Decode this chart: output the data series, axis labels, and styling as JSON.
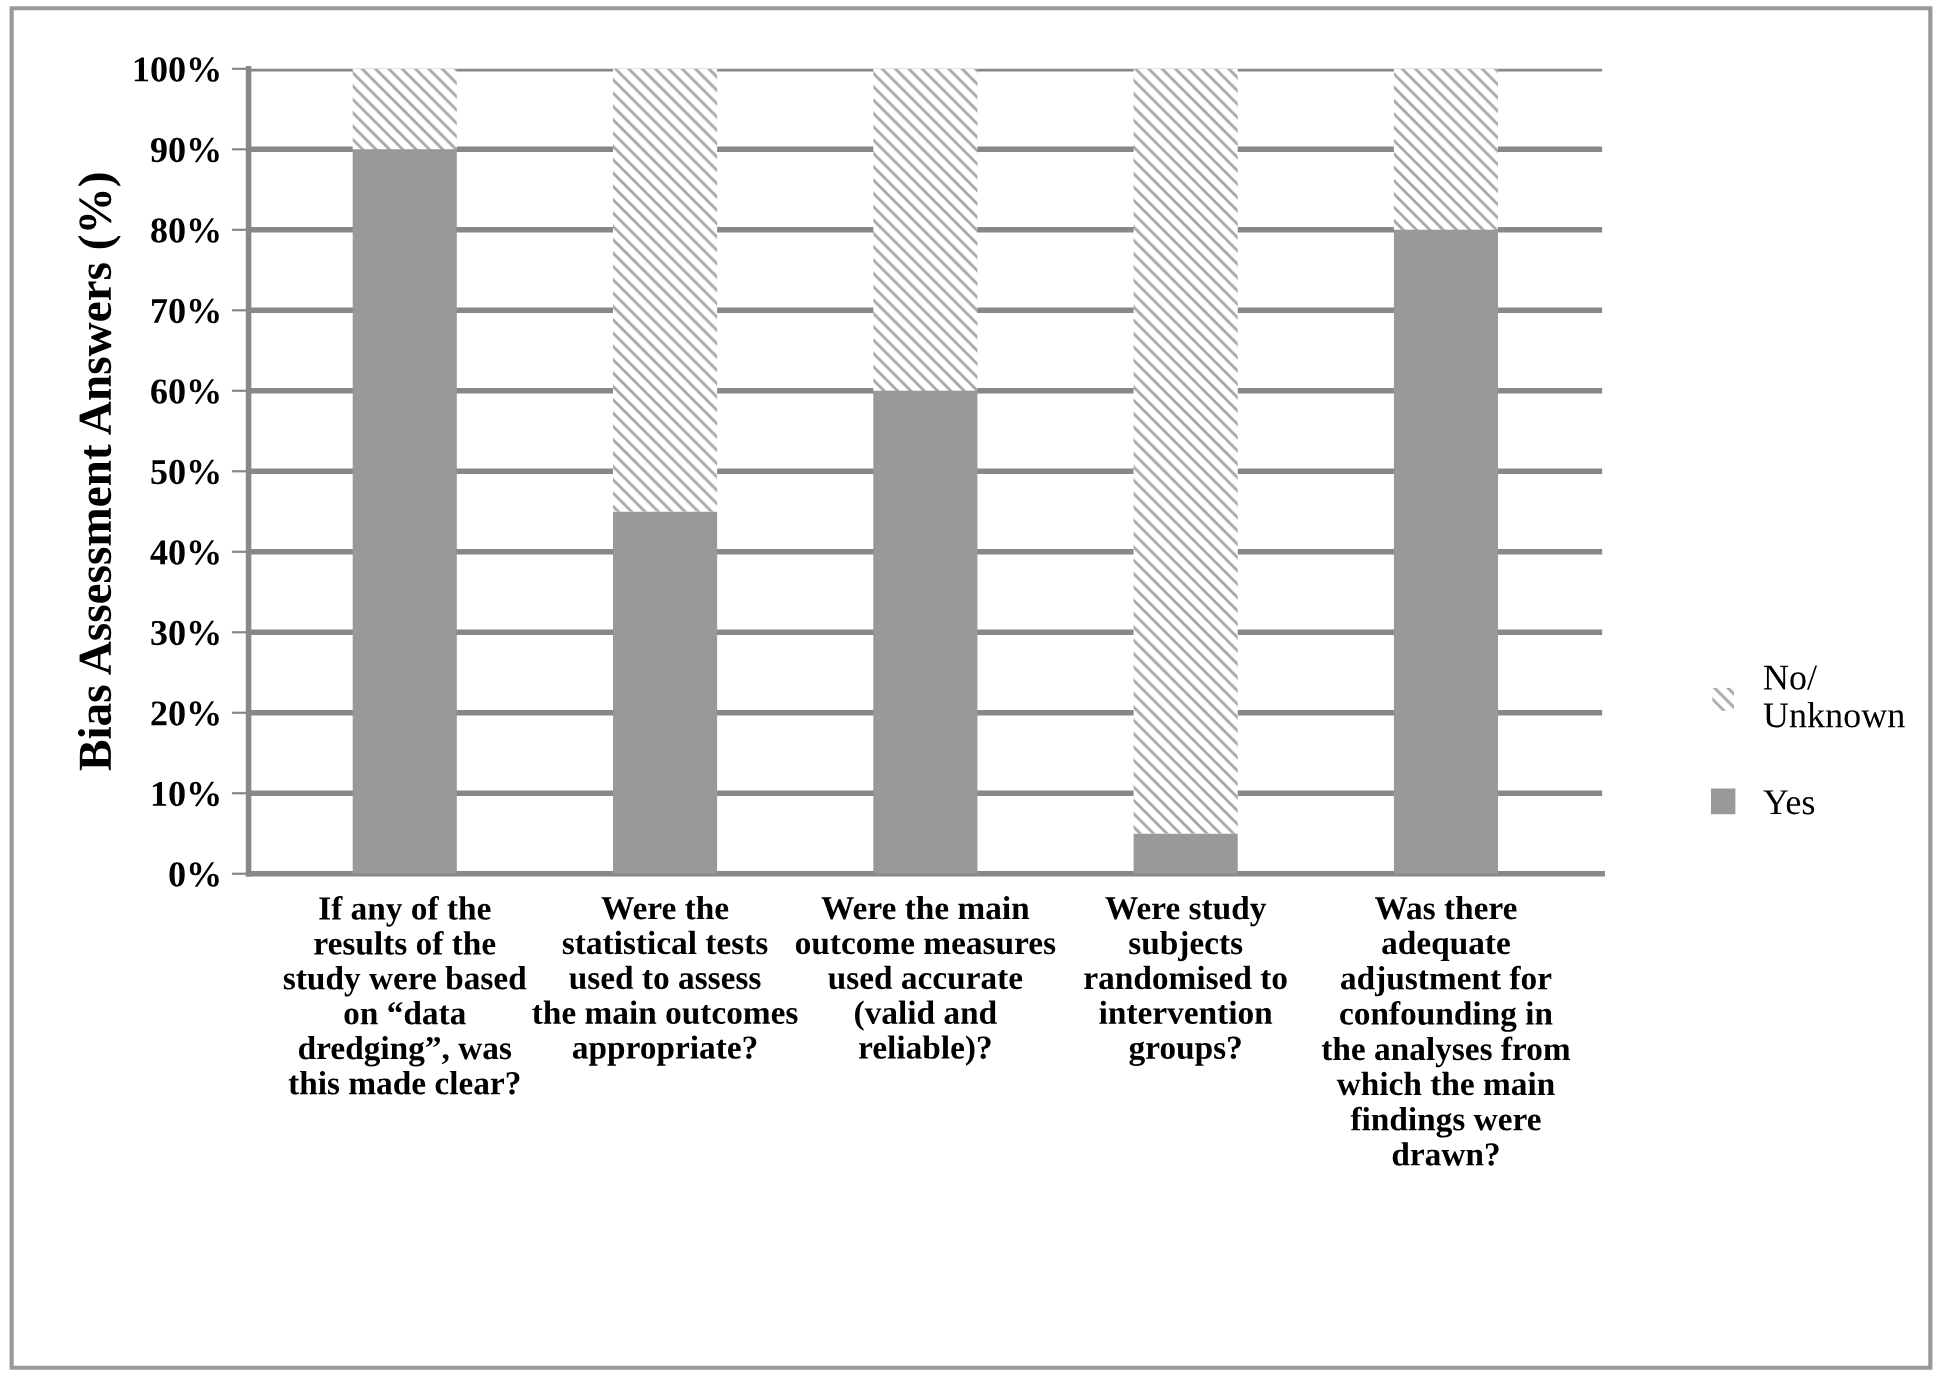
{
  "chart_data": {
    "type": "bar",
    "stacked": true,
    "ylabel": "Bias Assessment Answers (%)",
    "categories": [
      "If any of the results of the study were based on “data dredging”, was this made clear?",
      "Were the statistical tests used to assess the main outcomes appropriate?",
      "Were the main outcome measures used accurate (valid and reliable)?",
      "Were study subjects randomised to intervention groups?",
      "Was there adequate adjustment for confounding in the analyses from which the main findings were drawn?"
    ],
    "series": [
      {
        "name": "Yes",
        "color": "#999999",
        "values": [
          90,
          45,
          60,
          5,
          80
        ]
      },
      {
        "name": "No/ Unknown",
        "color": "#a6a6a6",
        "values": [
          10,
          55,
          40,
          95,
          20
        ]
      }
    ],
    "ylim": [
      0,
      100
    ],
    "yticks": [
      {
        "value": 0,
        "label": "0%"
      },
      {
        "value": 10,
        "label": "10%"
      },
      {
        "value": 20,
        "label": "20%"
      },
      {
        "value": 30,
        "label": "30%"
      },
      {
        "value": 40,
        "label": "40%"
      },
      {
        "value": 50,
        "label": "50%"
      },
      {
        "value": 60,
        "label": "60%"
      },
      {
        "value": 70,
        "label": "70%"
      },
      {
        "value": 80,
        "label": "80%"
      },
      {
        "value": 90,
        "label": "90%"
      },
      {
        "value": 100,
        "label": "100%"
      }
    ],
    "grid": "y",
    "legend": "right"
  }
}
